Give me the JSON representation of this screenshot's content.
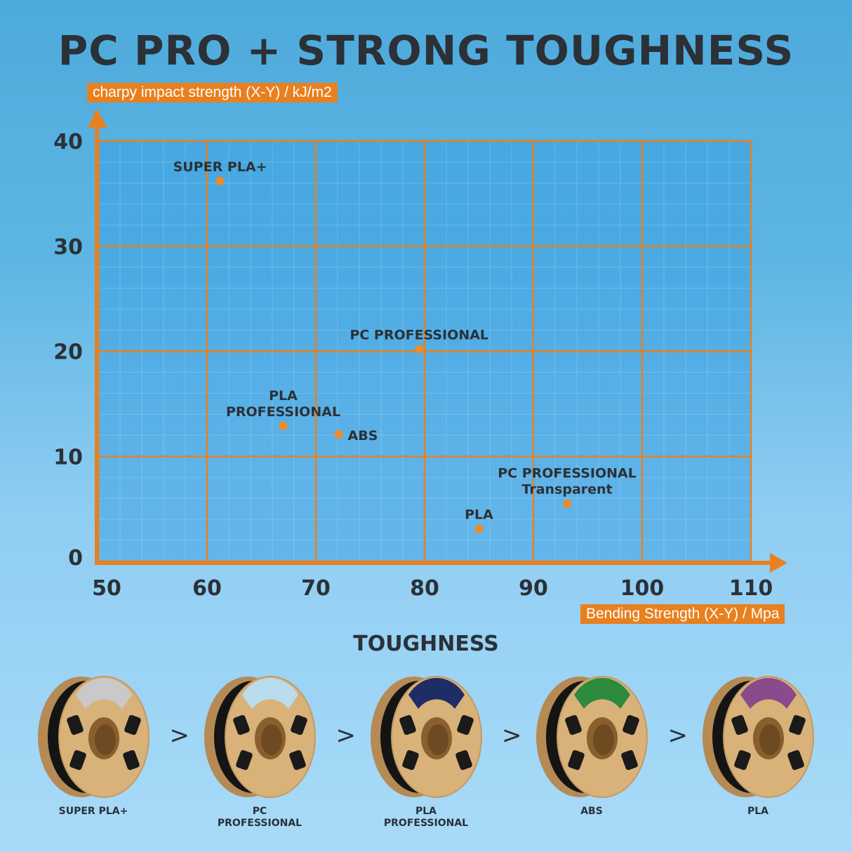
{
  "title": "PC PRO + STRONG TOUGHNESS",
  "chart_data": {
    "type": "scatter",
    "title": "PC PRO + STRONG TOUGHNESS",
    "xlabel": "Bending Strength (X-Y) / Mpa",
    "ylabel": "charpy impact strength (X-Y) / kJ/m2",
    "xlim": [
      50,
      110
    ],
    "ylim": [
      0,
      40
    ],
    "xticks": [
      50,
      60,
      70,
      80,
      90,
      100,
      110
    ],
    "yticks": [
      0,
      10,
      20,
      30,
      40
    ],
    "grid": true,
    "points": [
      {
        "label": [
          "SUPER PLA+"
        ],
        "x": 61.2,
        "y": 36.2
      },
      {
        "label": [
          "PC PROFESSIONAL"
        ],
        "x": 79.5,
        "y": 20.2
      },
      {
        "label": [
          "PLA",
          "PROFESSIONAL"
        ],
        "x": 67.0,
        "y": 12.9
      },
      {
        "label": [
          "ABS"
        ],
        "x": 72.1,
        "y": 12.1
      },
      {
        "label": [
          "PLA"
        ],
        "x": 85.0,
        "y": 3.1
      },
      {
        "label": [
          "PC PROFESSIONAL",
          "Transparent"
        ],
        "x": 93.1,
        "y": 5.5
      }
    ],
    "colors": {
      "axis": "#e8801f",
      "point": "#f08a24",
      "text": "#2b3137"
    }
  },
  "toughness": {
    "heading": "TOUGHNESS",
    "separator": ">",
    "products": [
      {
        "name": [
          "SUPER PLA+"
        ],
        "label_color": "#c9c9c9"
      },
      {
        "name": [
          "PC",
          "PROFESSIONAL"
        ],
        "label_color": "#b9dcee"
      },
      {
        "name": [
          "PLA",
          "PROFESSIONAL"
        ],
        "label_color": "#1f2d66"
      },
      {
        "name": [
          "ABS"
        ],
        "label_color": "#2e8a3c"
      },
      {
        "name": [
          "PLA"
        ],
        "label_color": "#8a4a8c"
      }
    ]
  }
}
